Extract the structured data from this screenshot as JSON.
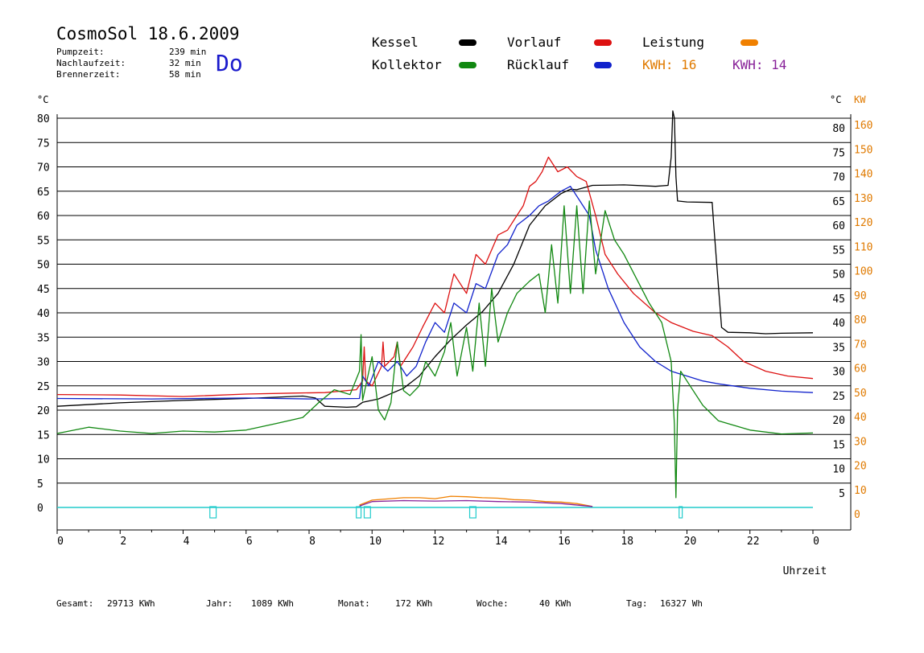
{
  "header": {
    "title": "CosmoSol 18.6.2009",
    "day": "Do",
    "stats": [
      {
        "label": "Pumpzeit:",
        "value": "239 min"
      },
      {
        "label": "Nachlaufzeit:",
        "value": "32 min"
      },
      {
        "label": "Brennerzeit:",
        "value": "58 min"
      }
    ]
  },
  "legend": {
    "items": [
      {
        "label": "Kessel",
        "color": "#000000"
      },
      {
        "label": "Vorlauf",
        "color": "#dd1111"
      },
      {
        "label": "Leistung",
        "color": "#f08000"
      },
      {
        "label": "Kollektor",
        "color": "#118811"
      },
      {
        "label": "Rücklauf",
        "color": "#1122cc"
      }
    ],
    "kwh1": "KWH: 16",
    "kwh2": "KWH: 14",
    "kwh1_color": "#e07a00",
    "kwh2_color": "#882299"
  },
  "footer": {
    "gesamt_label": "Gesamt:",
    "gesamt_value": "29713 KWh",
    "jahr_label": "Jahr:",
    "jahr_value": "1089 KWh",
    "monat_label": "Monat:",
    "monat_value": "172 KWh",
    "woche_label": "Woche:",
    "woche_value": "40 KWh",
    "tag_label": "Tag:",
    "tag_value": "16327 Wh"
  },
  "chart_data": {
    "type": "line",
    "xlabel": "Uhrzeit",
    "ylabel_left": "°C",
    "ylabel_right_c": "°C",
    "ylabel_right_kw": "KW",
    "xlim": [
      0,
      24
    ],
    "ylim": [
      0,
      80
    ],
    "x_ticks": [
      "0",
      "2",
      "4",
      "6",
      "8",
      "10",
      "12",
      "14",
      "16",
      "18",
      "20",
      "22",
      "0"
    ],
    "y_ticks": [
      "0",
      "5",
      "10",
      "15",
      "20",
      "25",
      "30",
      "35",
      "40",
      "45",
      "50",
      "55",
      "60",
      "65",
      "70",
      "75",
      "80"
    ],
    "y_ticks_right_c": [
      "5",
      "10",
      "15",
      "20",
      "25",
      "30",
      "35",
      "40",
      "45",
      "50",
      "55",
      "60",
      "65",
      "70",
      "75",
      "80"
    ],
    "y_ticks_right_kw": [
      "0",
      "10",
      "20",
      "30",
      "40",
      "50",
      "60",
      "70",
      "80",
      "90",
      "100",
      "110",
      "120",
      "130",
      "140",
      "150",
      "160"
    ],
    "grid": "horizontal",
    "series": [
      {
        "name": "Kessel",
        "color": "#000000",
        "points": [
          [
            0,
            20.8
          ],
          [
            2,
            21.5
          ],
          [
            4,
            22
          ],
          [
            6,
            22.4
          ],
          [
            7.8,
            22.9
          ],
          [
            8.2,
            22.5
          ],
          [
            8.5,
            20.8
          ],
          [
            9.2,
            20.6
          ],
          [
            9.5,
            20.7
          ],
          [
            9.7,
            21.6
          ],
          [
            10.2,
            22.3
          ],
          [
            11,
            24.5
          ],
          [
            11.5,
            27
          ],
          [
            12,
            31
          ],
          [
            12.5,
            34.5
          ],
          [
            13,
            37.5
          ],
          [
            13.5,
            40.2
          ],
          [
            14,
            44
          ],
          [
            14.5,
            50
          ],
          [
            15,
            58
          ],
          [
            15.5,
            62
          ],
          [
            16,
            64.5
          ],
          [
            16.3,
            65.4
          ],
          [
            16.5,
            65.3
          ],
          [
            17,
            66.2
          ],
          [
            18,
            66.3
          ],
          [
            19,
            66
          ],
          [
            19.4,
            66.2
          ],
          [
            19.5,
            72
          ],
          [
            19.55,
            81.5
          ],
          [
            19.6,
            80
          ],
          [
            19.65,
            68
          ],
          [
            19.7,
            63
          ],
          [
            20,
            62.8
          ],
          [
            20.8,
            62.7
          ],
          [
            20.85,
            58
          ],
          [
            21.1,
            37
          ],
          [
            21.3,
            36
          ],
          [
            22,
            35.9
          ],
          [
            22.5,
            35.7
          ],
          [
            23,
            35.8
          ],
          [
            24,
            35.9
          ]
        ]
      },
      {
        "name": "Vorlauf",
        "color": "#dd1111",
        "points": [
          [
            0,
            23.2
          ],
          [
            2,
            23.1
          ],
          [
            4,
            22.8
          ],
          [
            6,
            23.3
          ],
          [
            7.5,
            23.5
          ],
          [
            8.5,
            23.6
          ],
          [
            9.5,
            24.2
          ],
          [
            9.7,
            26
          ],
          [
            9.75,
            33
          ],
          [
            9.8,
            26
          ],
          [
            10,
            25
          ],
          [
            10.3,
            29
          ],
          [
            10.35,
            34
          ],
          [
            10.4,
            29
          ],
          [
            10.7,
            31
          ],
          [
            10.8,
            34
          ],
          [
            10.9,
            29
          ],
          [
            11.3,
            33
          ],
          [
            11.6,
            37
          ],
          [
            12,
            42
          ],
          [
            12.3,
            40
          ],
          [
            12.6,
            48
          ],
          [
            13,
            44
          ],
          [
            13.3,
            52
          ],
          [
            13.6,
            50
          ],
          [
            14,
            56
          ],
          [
            14.3,
            57
          ],
          [
            14.6,
            60
          ],
          [
            14.8,
            62
          ],
          [
            15,
            66
          ],
          [
            15.2,
            67
          ],
          [
            15.4,
            69
          ],
          [
            15.6,
            72
          ],
          [
            15.9,
            69
          ],
          [
            16.2,
            70
          ],
          [
            16.5,
            68
          ],
          [
            16.8,
            67
          ],
          [
            17.1,
            60
          ],
          [
            17.4,
            52
          ],
          [
            17.8,
            48
          ],
          [
            18.3,
            44
          ],
          [
            19,
            40
          ],
          [
            19.5,
            38
          ],
          [
            20.2,
            36.2
          ],
          [
            20.8,
            35.3
          ],
          [
            21.3,
            33
          ],
          [
            21.8,
            30
          ],
          [
            22.5,
            28
          ],
          [
            23.2,
            27
          ],
          [
            24,
            26.5
          ]
        ]
      },
      {
        "name": "Rücklauf",
        "color": "#1122cc",
        "points": [
          [
            0,
            22.4
          ],
          [
            3,
            22.3
          ],
          [
            6,
            22.5
          ],
          [
            8,
            22.3
          ],
          [
            9.6,
            22.4
          ],
          [
            9.7,
            27
          ],
          [
            9.9,
            25
          ],
          [
            10.2,
            30
          ],
          [
            10.5,
            28
          ],
          [
            10.8,
            30
          ],
          [
            11.1,
            27
          ],
          [
            11.4,
            29
          ],
          [
            11.7,
            34
          ],
          [
            12,
            38
          ],
          [
            12.3,
            36
          ],
          [
            12.6,
            42
          ],
          [
            13,
            40
          ],
          [
            13.3,
            46
          ],
          [
            13.6,
            45
          ],
          [
            14,
            52
          ],
          [
            14.3,
            54
          ],
          [
            14.6,
            58
          ],
          [
            15,
            60
          ],
          [
            15.3,
            62
          ],
          [
            15.6,
            63
          ],
          [
            16,
            65
          ],
          [
            16.3,
            66
          ],
          [
            16.6,
            63
          ],
          [
            16.9,
            60
          ],
          [
            17.1,
            53
          ],
          [
            17.5,
            45
          ],
          [
            18,
            38
          ],
          [
            18.5,
            33
          ],
          [
            19,
            30
          ],
          [
            19.5,
            28
          ],
          [
            20,
            27
          ],
          [
            20.5,
            26
          ],
          [
            21,
            25.4
          ],
          [
            22,
            24.5
          ],
          [
            23,
            23.9
          ],
          [
            24,
            23.6
          ]
        ]
      },
      {
        "name": "Kollektor",
        "color": "#118811",
        "points": [
          [
            0,
            15.2
          ],
          [
            1,
            16.5
          ],
          [
            2,
            15.7
          ],
          [
            3,
            15.2
          ],
          [
            4,
            15.7
          ],
          [
            5,
            15.5
          ],
          [
            6,
            15.9
          ],
          [
            7,
            17.3
          ],
          [
            7.8,
            18.5
          ],
          [
            8.3,
            21.5
          ],
          [
            8.8,
            24.2
          ],
          [
            9.3,
            23.2
          ],
          [
            9.6,
            28
          ],
          [
            9.65,
            35.5
          ],
          [
            9.7,
            22
          ],
          [
            10,
            31
          ],
          [
            10.2,
            20
          ],
          [
            10.4,
            18
          ],
          [
            10.6,
            21.5
          ],
          [
            10.8,
            34
          ],
          [
            11,
            24
          ],
          [
            11.2,
            23
          ],
          [
            11.5,
            25
          ],
          [
            11.7,
            30
          ],
          [
            12,
            27
          ],
          [
            12.3,
            32
          ],
          [
            12.5,
            38
          ],
          [
            12.7,
            27
          ],
          [
            13,
            37
          ],
          [
            13.2,
            28
          ],
          [
            13.4,
            42
          ],
          [
            13.6,
            29
          ],
          [
            13.8,
            45
          ],
          [
            14,
            34
          ],
          [
            14.3,
            40
          ],
          [
            14.6,
            44
          ],
          [
            15,
            46.5
          ],
          [
            15.3,
            48
          ],
          [
            15.5,
            40
          ],
          [
            15.7,
            54
          ],
          [
            15.9,
            42
          ],
          [
            16.1,
            62
          ],
          [
            16.3,
            44
          ],
          [
            16.5,
            62
          ],
          [
            16.7,
            44
          ],
          [
            16.9,
            63
          ],
          [
            17.1,
            48
          ],
          [
            17.4,
            61
          ],
          [
            17.7,
            55
          ],
          [
            18,
            52
          ],
          [
            18.4,
            47
          ],
          [
            18.8,
            42
          ],
          [
            19.2,
            38
          ],
          [
            19.5,
            30
          ],
          [
            19.6,
            17
          ],
          [
            19.65,
            2
          ],
          [
            19.7,
            20
          ],
          [
            19.8,
            28
          ],
          [
            20.1,
            25
          ],
          [
            20.5,
            21
          ],
          [
            21,
            17.8
          ],
          [
            22,
            15.9
          ],
          [
            23,
            15.1
          ],
          [
            24,
            15.3
          ]
        ]
      },
      {
        "name": "Leistung",
        "color": "#f08000",
        "points": [
          [
            9.6,
            0.5
          ],
          [
            10,
            1.5
          ],
          [
            11,
            2
          ],
          [
            11.5,
            2
          ],
          [
            12,
            1.8
          ],
          [
            12.5,
            2.3
          ],
          [
            13,
            2.2
          ],
          [
            13.5,
            2
          ],
          [
            14,
            1.9
          ],
          [
            14.5,
            1.6
          ],
          [
            15,
            1.5
          ],
          [
            15.5,
            1.2
          ],
          [
            16,
            1.1
          ],
          [
            16.5,
            0.8
          ],
          [
            17,
            0.2
          ]
        ]
      },
      {
        "name": "KWH-purple",
        "color": "#882299",
        "points": [
          [
            9.6,
            0.3
          ],
          [
            10,
            1.2
          ],
          [
            11,
            1.4
          ],
          [
            12,
            1.3
          ],
          [
            13,
            1.4
          ],
          [
            14,
            1.2
          ],
          [
            15,
            1.1
          ],
          [
            16,
            0.8
          ],
          [
            17,
            0.2
          ]
        ]
      }
    ],
    "pump_events": [
      [
        4.85,
        5.05
      ],
      [
        9.5,
        9.65
      ],
      [
        9.75,
        9.95
      ],
      [
        13.1,
        13.3
      ],
      [
        19.75,
        19.85
      ]
    ]
  }
}
